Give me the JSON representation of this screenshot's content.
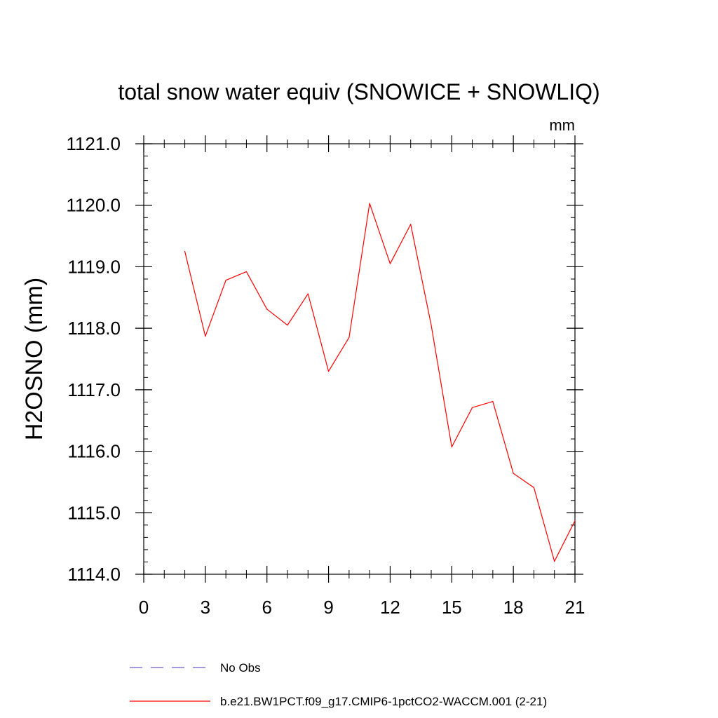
{
  "chart_data": {
    "type": "line",
    "title": "total snow water equiv (SNOWICE + SNOWLIQ)",
    "units": "mm",
    "xlabel": "",
    "ylabel": "H2OSNO  (mm)",
    "xlim": [
      0,
      21
    ],
    "ylim": [
      1114.0,
      1121.0
    ],
    "xticks": [
      0,
      3,
      6,
      9,
      12,
      15,
      18,
      21
    ],
    "yticks": [
      1114.0,
      1115.0,
      1116.0,
      1117.0,
      1118.0,
      1119.0,
      1120.0,
      1121.0
    ],
    "grid": false,
    "legend_position": "bottom-left",
    "series": [
      {
        "name": "b.e21.BW1PCT.f09_g17.CMIP6-1pctCO2-WACCM.001 (2-21)",
        "color": "#ff0000",
        "dash": "solid",
        "x": [
          2,
          3,
          4,
          5,
          6,
          7,
          8,
          9,
          10,
          11,
          12,
          13,
          14,
          15,
          16,
          17,
          18,
          19,
          20,
          21
        ],
        "y": [
          1119.25,
          1117.87,
          1118.78,
          1118.92,
          1118.31,
          1118.05,
          1118.56,
          1117.3,
          1117.85,
          1120.03,
          1119.05,
          1119.69,
          1118.05,
          1116.07,
          1116.71,
          1116.81,
          1115.64,
          1115.41,
          1114.21,
          1114.87
        ]
      }
    ],
    "legend": [
      {
        "label": "No Obs",
        "color": "#6a5acd",
        "dash": "dashed"
      },
      {
        "label": "b.e21.BW1PCT.f09_g17.CMIP6-1pctCO2-WACCM.001 (2-21)",
        "color": "#ff0000",
        "dash": "solid"
      }
    ]
  }
}
